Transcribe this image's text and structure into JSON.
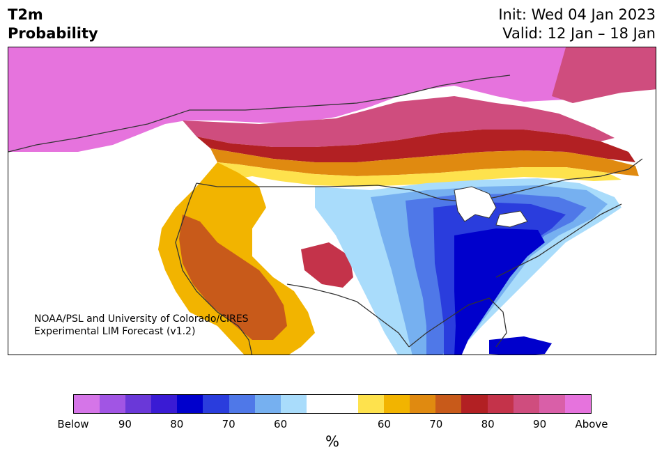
{
  "title": {
    "variable": "T2m",
    "product": "Probability",
    "init": "Init: Wed 04 Jan 2023",
    "valid": "Valid: 12 Jan – 18 Jan"
  },
  "credit": {
    "line1": "NOAA/PSL and University of Colorado/CIRES",
    "line2": "Experimental LIM Forecast (v1.2)"
  },
  "colorbar": {
    "colors": [
      "#d575e8",
      "#a155e4",
      "#6a38d8",
      "#3a1bd4",
      "#0000cc",
      "#2a3ddd",
      "#4f78e8",
      "#76b0f0",
      "#a9dcfb",
      "#ffffff",
      "#ffffff",
      "#fee24d",
      "#f2b400",
      "#e08a10",
      "#c85a1a",
      "#b22023",
      "#c4334a",
      "#cf4d7e",
      "#d95fa8",
      "#e673dd"
    ],
    "tick_labels": [
      "Below",
      "90",
      "80",
      "70",
      "60",
      "60",
      "70",
      "80",
      "90",
      "Above"
    ],
    "unit": "%"
  },
  "map_colors": {
    "above_high": "#e673dd",
    "above_90": "#d95fa8",
    "above_85": "#cf4d7e",
    "above_80": "#c4334a",
    "above_75": "#b22023",
    "above_70": "#c85a1a",
    "above_65": "#e08a10",
    "above_60": "#f2b400",
    "above_55": "#fee24d",
    "below_55": "#a9dcfb",
    "below_60": "#76b0f0",
    "below_65": "#4f78e8",
    "below_70": "#2a3ddd",
    "below_75": "#0000cc",
    "border": "#333333"
  }
}
